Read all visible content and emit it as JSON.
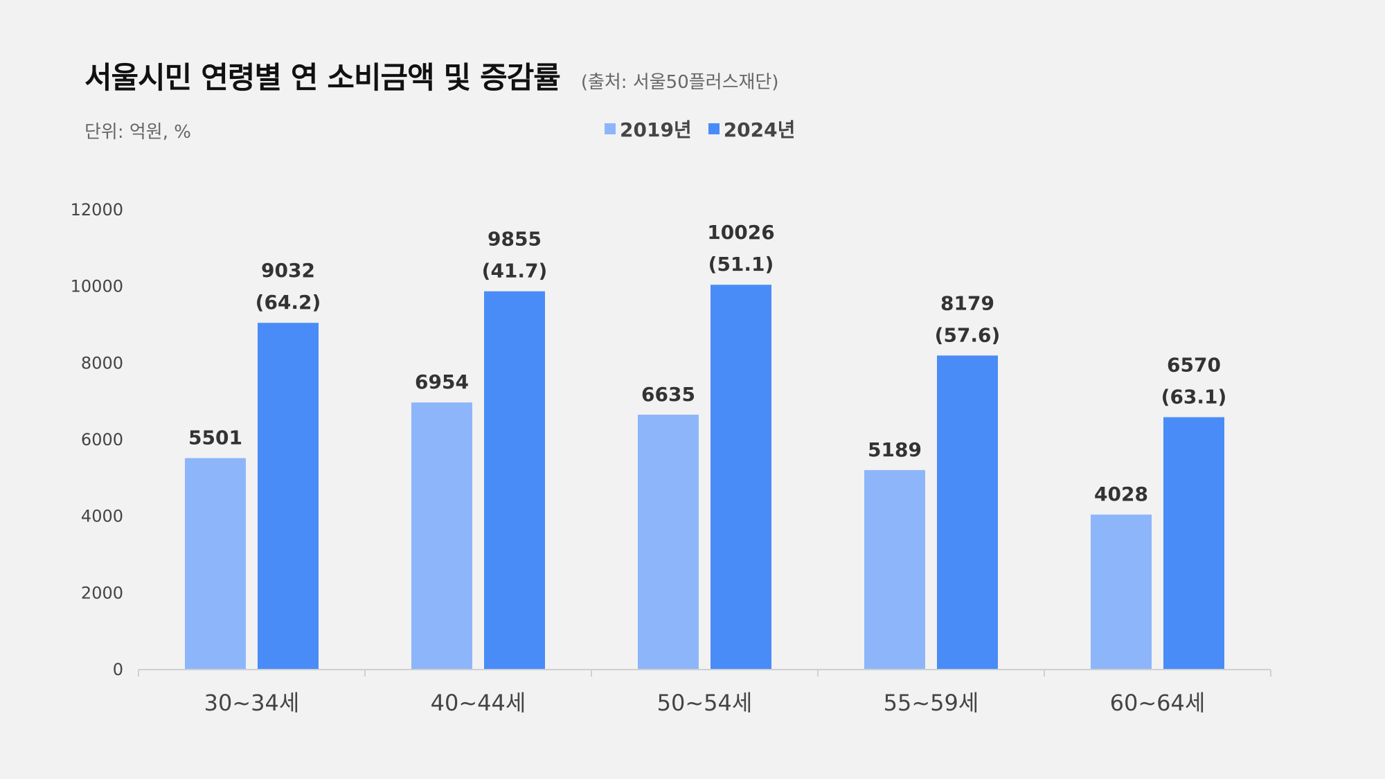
{
  "chart_data": {
    "type": "bar",
    "title": "서울시민 연령별 연 소비금액 및 증감률",
    "source": "(출처: 서울50플러스재단)",
    "unit": "단위: 억원, %",
    "categories": [
      "30~34세",
      "40~44세",
      "50~54세",
      "55~59세",
      "60~64세"
    ],
    "series": [
      {
        "name": "2019년",
        "color": "#8db6fa",
        "values": [
          5501,
          6954,
          6635,
          5189,
          4028
        ]
      },
      {
        "name": "2024년",
        "color": "#4a8cf7",
        "values": [
          9032,
          9855,
          10026,
          8179,
          6570
        ],
        "growth_rates": [
          "(64.2)",
          "(41.7)",
          "(51.1)",
          "(57.6)",
          "(63.1)"
        ]
      }
    ],
    "ylim": [
      0,
      12000
    ],
    "yticks": [
      0,
      2000,
      4000,
      6000,
      8000,
      10000,
      12000
    ],
    "grid": false,
    "legend_position": "top-center",
    "xlabel": "",
    "ylabel": ""
  }
}
